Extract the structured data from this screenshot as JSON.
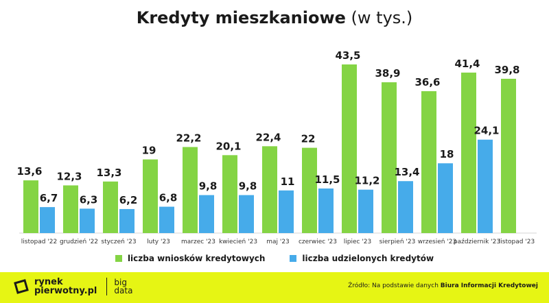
{
  "title": {
    "main": "Kredyty mieszkaniowe",
    "unit": "(w tys.)"
  },
  "legend": {
    "applications": "liczba wniosków kredytowych",
    "granted": "liczba udzielonych kredytów"
  },
  "colors": {
    "applications": "#84d444",
    "granted": "#46abea",
    "footer": "#e6f514"
  },
  "footer": {
    "logo_line1": "rynek",
    "logo_line2": "pierwotny.pl",
    "logo_big1": "big",
    "logo_big2": "data",
    "source_prefix": "Źródło: Na podstawie danych",
    "source_bold": "Biura Informacji Kredytowej"
  },
  "chart_data": {
    "type": "bar",
    "categories": [
      "listopad '22",
      "grudzień '22",
      "styczeń '23",
      "luty '23",
      "marzec '23",
      "kwiecień '23",
      "maj '23",
      "czerwiec '23",
      "lipiec '23",
      "sierpień '23",
      "wrzesień '23",
      "październik '23",
      "listopad '23"
    ],
    "series": [
      {
        "name": "liczba wniosków kredytowych",
        "values": [
          13.6,
          12.3,
          13.3,
          19,
          22.2,
          20.1,
          22.4,
          22,
          43.5,
          38.9,
          36.6,
          41.4,
          39.8
        ],
        "labels": [
          "13,6",
          "12,3",
          "13,3",
          "19",
          "22,2",
          "20,1",
          "22,4",
          "22",
          "43,5",
          "38,9",
          "36,6",
          "41,4",
          "39,8"
        ]
      },
      {
        "name": "liczba udzielonych kredytów",
        "values": [
          6.7,
          6.3,
          6.2,
          6.8,
          9.8,
          9.8,
          11,
          11.5,
          11.2,
          13.4,
          18,
          24.1,
          null
        ],
        "labels": [
          "6,7",
          "6,3",
          "6,2",
          "6,8",
          "9,8",
          "9,8",
          "11",
          "11,5",
          "11,2",
          "13,4",
          "18",
          "24,1",
          ""
        ]
      }
    ],
    "title": "Kredyty mieszkaniowe (w tys.)",
    "xlabel": "",
    "ylabel": "",
    "ylim": [
      0,
      43.5
    ],
    "grid": false,
    "legend_position": "bottom"
  }
}
